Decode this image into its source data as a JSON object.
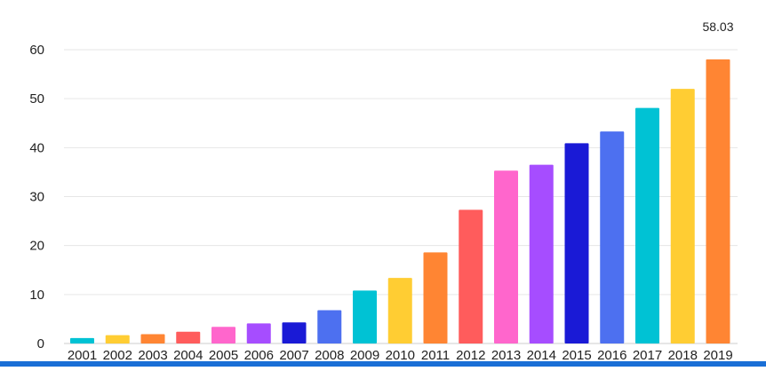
{
  "chart_data": {
    "type": "bar",
    "title": "",
    "xlabel": "",
    "ylabel": "",
    "ylim": [
      0,
      60
    ],
    "yticks": [
      0,
      10,
      20,
      30,
      40,
      50,
      60
    ],
    "grid": "horizontal",
    "legend": "none",
    "categories": [
      "2001",
      "2002",
      "2003",
      "2004",
      "2005",
      "2006",
      "2007",
      "2008",
      "2009",
      "2010",
      "2011",
      "2012",
      "2013",
      "2014",
      "2015",
      "2016",
      "2017",
      "2018",
      "2019"
    ],
    "values": [
      1.1,
      1.7,
      1.9,
      2.4,
      3.4,
      4.1,
      4.3,
      6.8,
      10.8,
      13.4,
      18.6,
      27.3,
      35.3,
      36.5,
      40.9,
      43.3,
      48.1,
      52.0,
      58.03
    ],
    "colors": [
      "#00c2d4",
      "#ffcd33",
      "#ff8533",
      "#ff5c5c",
      "#ff66cc",
      "#a64dff",
      "#1a1ad6",
      "#4d70f0",
      "#00c2d4",
      "#ffcd33",
      "#ff8533",
      "#ff5c5c",
      "#ff66cc",
      "#a64dff",
      "#1a1ad6",
      "#4d70f0",
      "#00c2d4",
      "#ffcd33",
      "#ff8533"
    ],
    "data_labels": [
      {
        "index": 18,
        "text": "58.03"
      }
    ]
  }
}
